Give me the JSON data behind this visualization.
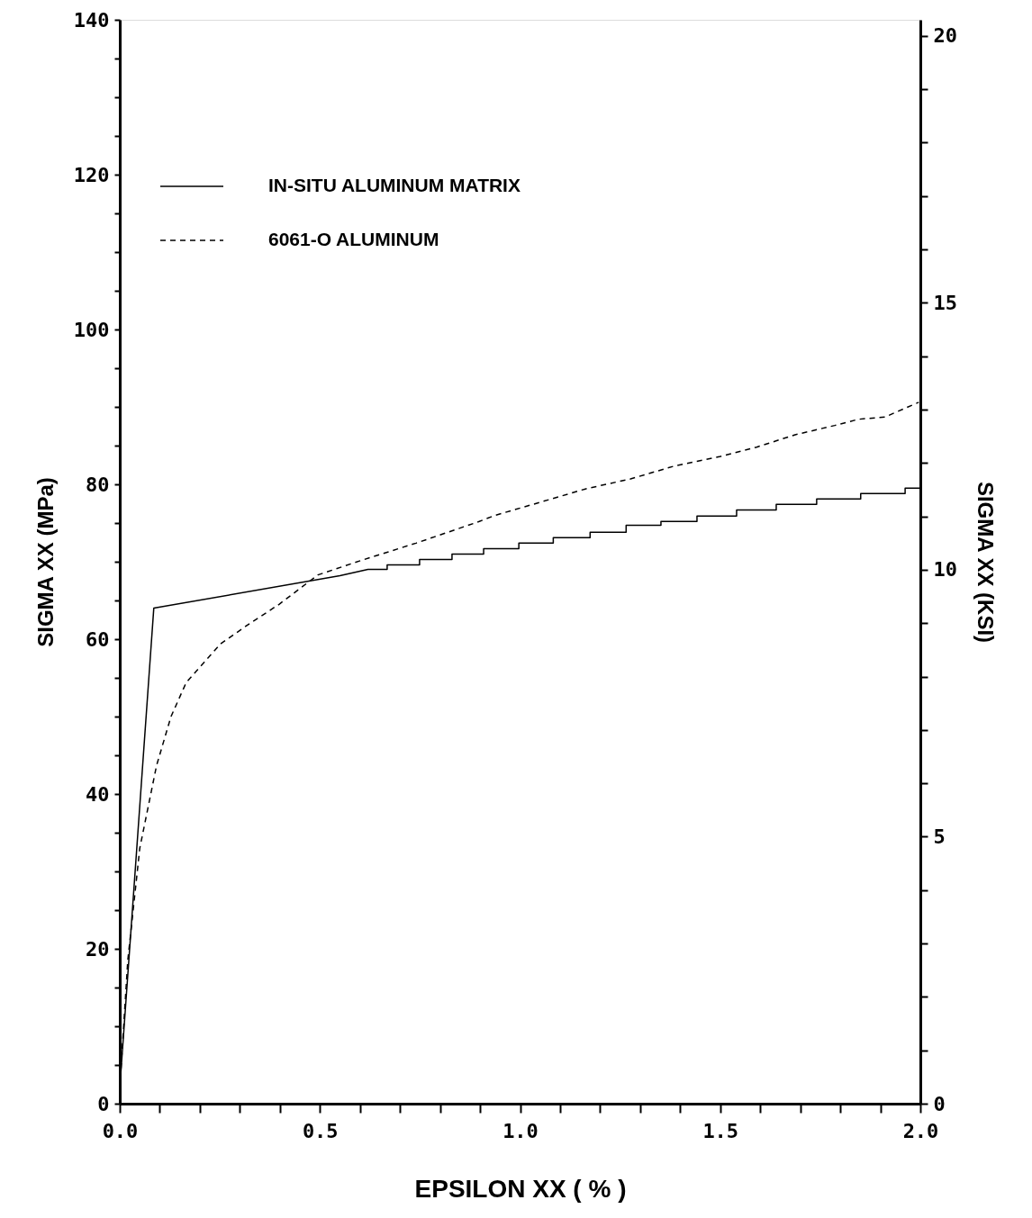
{
  "chart_data": {
    "type": "line",
    "xlabel": "EPSILON XX ( % )",
    "ylabel": "SIGMA XX (MPa)",
    "y2label": "SIGMA XX (KSI)",
    "xlim": [
      0,
      2.0
    ],
    "ylim": [
      0,
      140
    ],
    "y2lim": [
      0,
      20.3
    ],
    "xticks": [
      {
        "value": 0,
        "label": "0.0"
      },
      {
        "value": 0.1,
        "label": null
      },
      {
        "value": 0.2,
        "label": null
      },
      {
        "value": 0.3,
        "label": null
      },
      {
        "value": 0.4,
        "label": null
      },
      {
        "value": 0.5,
        "label": "0.5"
      },
      {
        "value": 0.6,
        "label": null
      },
      {
        "value": 0.7,
        "label": null
      },
      {
        "value": 0.8,
        "label": null
      },
      {
        "value": 0.9,
        "label": null
      },
      {
        "value": 1.0,
        "label": "1.0"
      },
      {
        "value": 1.1,
        "label": null
      },
      {
        "value": 1.2,
        "label": null
      },
      {
        "value": 1.3,
        "label": null
      },
      {
        "value": 1.4,
        "label": null
      },
      {
        "value": 1.5,
        "label": "1.5"
      },
      {
        "value": 1.6,
        "label": null
      },
      {
        "value": 1.7,
        "label": null
      },
      {
        "value": 1.8,
        "label": null
      },
      {
        "value": 1.9,
        "label": null
      },
      {
        "value": 2.0,
        "label": "2.0"
      }
    ],
    "yticks": [
      0,
      {
        "value": 5,
        "label": null
      },
      {
        "value": 10,
        "label": null
      },
      {
        "value": 15,
        "label": null
      },
      20,
      {
        "value": 25,
        "label": null
      },
      {
        "value": 30,
        "label": null
      },
      {
        "value": 35,
        "label": null
      },
      40,
      {
        "value": 45,
        "label": null
      },
      {
        "value": 50,
        "label": null
      },
      {
        "value": 55,
        "label": null
      },
      60,
      {
        "value": 65,
        "label": null
      },
      {
        "value": 70,
        "label": null
      },
      {
        "value": 75,
        "label": null
      },
      80,
      {
        "value": 85,
        "label": null
      },
      {
        "value": 90,
        "label": null
      },
      {
        "value": 95,
        "label": null
      },
      100,
      {
        "value": 105,
        "label": null
      },
      {
        "value": 110,
        "label": null
      },
      {
        "value": 115,
        "label": null
      },
      120,
      {
        "value": 125,
        "label": null
      },
      {
        "value": 130,
        "label": null
      },
      {
        "value": 135,
        "label": null
      },
      140
    ],
    "y2ticks": [
      0,
      {
        "value": 1,
        "label": null
      },
      {
        "value": 2,
        "label": null
      },
      {
        "value": 3,
        "label": null
      },
      {
        "value": 4,
        "label": null
      },
      5,
      {
        "value": 6,
        "label": null
      },
      {
        "value": 7,
        "label": null
      },
      {
        "value": 8,
        "label": null
      },
      {
        "value": 9,
        "label": null
      },
      10,
      {
        "value": 11,
        "label": null
      },
      {
        "value": 12,
        "label": null
      },
      {
        "value": 13,
        "label": null
      },
      {
        "value": 14,
        "label": null
      },
      15,
      {
        "value": 16,
        "label": null
      },
      {
        "value": 17,
        "label": null
      },
      {
        "value": 18,
        "label": null
      },
      {
        "value": 19,
        "label": null
      },
      20
    ],
    "grid": false,
    "legend": "top left",
    "marker": "none",
    "series": [
      {
        "name": "IN-SITU ALUMINUM MATRIX",
        "color": "#000000",
        "line_style": "solid",
        "x": [
          0,
          0.085,
          0.55,
          0.62,
          0.668,
          0.668,
          0.749,
          0.749,
          0.83,
          0.83,
          0.909,
          0.909,
          0.997,
          0.997,
          1.083,
          1.083,
          1.175,
          1.175,
          1.265,
          1.265,
          1.352,
          1.352,
          1.442,
          1.442,
          1.541,
          1.541,
          1.64,
          1.64,
          1.741,
          1.741,
          1.851,
          1.851,
          1.962,
          1.962,
          2.0
        ],
        "values": [
          2,
          64.0,
          68.2,
          69.0,
          69.0,
          69.6,
          69.6,
          70.3,
          70.3,
          71.0,
          71.0,
          71.7,
          71.7,
          72.4,
          72.4,
          73.1,
          73.1,
          73.8,
          73.8,
          74.7,
          74.7,
          75.2,
          75.2,
          75.9,
          75.9,
          76.7,
          76.7,
          77.4,
          77.4,
          78.1,
          78.1,
          78.8,
          78.8,
          79.5,
          79.5
        ]
      },
      {
        "name": "6061-O ALUMINUM",
        "color": "#000000",
        "line_style": "dashed",
        "x": [
          0,
          0.02,
          0.05,
          0.092,
          0.128,
          0.166,
          0.252,
          0.324,
          0.398,
          0.495,
          0.605,
          0.74,
          0.898,
          0.938,
          1.058,
          1.163,
          1.276,
          1.388,
          1.501,
          1.591,
          1.687,
          1.786,
          1.845,
          1.912,
          1.996
        ],
        "values": [
          2,
          18.5,
          33,
          43.7,
          50,
          54.4,
          59.4,
          62,
          64.5,
          68.3,
          70.2,
          72.4,
          75.2,
          76.0,
          77.8,
          79.4,
          80.7,
          82.4,
          83.6,
          84.8,
          86.4,
          87.6,
          88.4,
          88.7,
          90.6
        ]
      }
    ]
  }
}
